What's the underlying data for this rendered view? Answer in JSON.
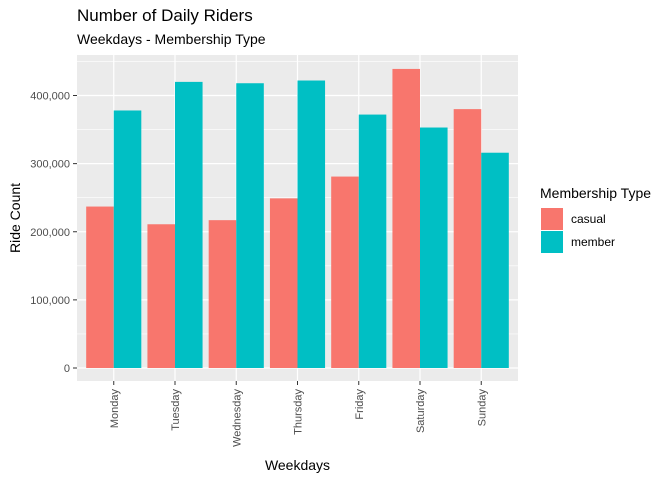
{
  "chart_data": {
    "type": "bar",
    "title": "Number of Daily Riders",
    "subtitle": "Weekdays - Membership Type",
    "xlabel": "Weekdays",
    "ylabel": "Ride Count",
    "categories": [
      "Monday",
      "Tuesday",
      "Wednesday",
      "Thursday",
      "Friday",
      "Saturday",
      "Sunday"
    ],
    "series": [
      {
        "name": "casual",
        "color": "#F8766D",
        "values": [
          237000,
          211000,
          217000,
          249000,
          281000,
          439000,
          380000
        ]
      },
      {
        "name": "member",
        "color": "#00BFC4",
        "values": [
          378000,
          420000,
          418000,
          422000,
          372000,
          353000,
          316000
        ]
      }
    ],
    "ylim": [
      0,
      460000
    ],
    "yticks": [
      0,
      100000,
      200000,
      300000,
      400000
    ],
    "ytick_labels": [
      "0",
      "100,000",
      "200,000",
      "300,000",
      "400,000"
    ],
    "legend": {
      "title": "Membership Type",
      "position": "right"
    },
    "grid": true,
    "background": "#EBEBEB"
  }
}
